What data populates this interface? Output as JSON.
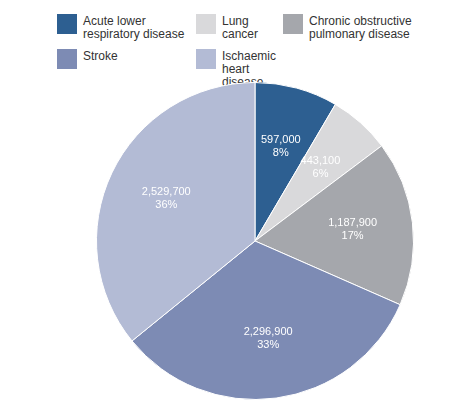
{
  "chart_data": {
    "type": "pie",
    "categories": [
      "Acute lower respiratory disease",
      "Lung cancer",
      "Chronic obstructive pulmonary disease",
      "Stroke",
      "Ischaemic heart disease"
    ],
    "values": [
      597000,
      443100,
      1187900,
      2296900,
      2529700
    ],
    "value_labels": [
      "597,000",
      "443,100",
      "1,187,900",
      "2,296,900",
      "2,529,700"
    ],
    "percent_labels": [
      "8%",
      "6%",
      "17%",
      "33%",
      "36%"
    ],
    "colors": [
      "#2d5f91",
      "#d9d9db",
      "#a5a7ac",
      "#7d8bb4",
      "#b3bbd5"
    ],
    "legend": "top",
    "data_labels": true
  }
}
